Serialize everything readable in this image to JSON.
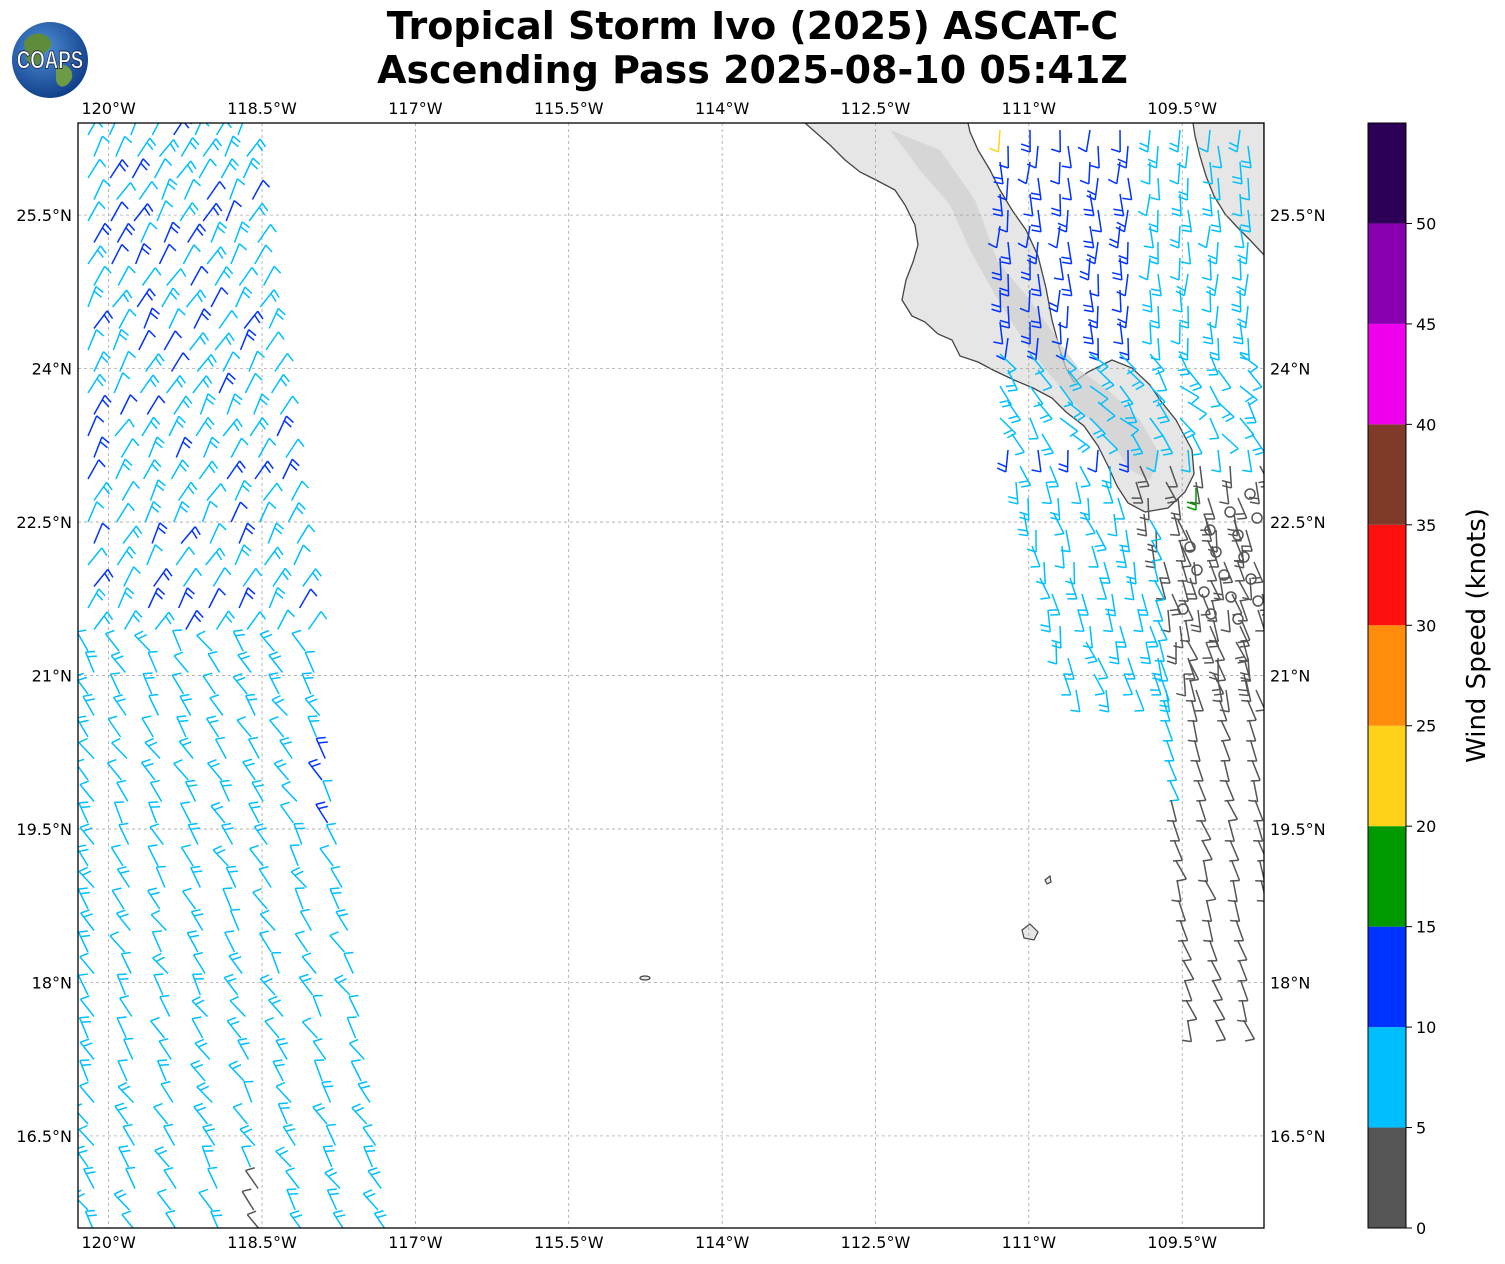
{
  "title": {
    "line1": "Tropical Storm Ivo (2025) ASCAT-C",
    "line2": "Ascending Pass 2025-08-10 05:41Z"
  },
  "logo": {
    "text": "COAPS",
    "icon": "globe-logo"
  },
  "map": {
    "lon_range": [
      -120.3,
      -108.7
    ],
    "lat_range": [
      15.6,
      26.4
    ],
    "gridlines": true,
    "x_ticks": [
      "120°W",
      "118.5°W",
      "117°W",
      "115.5°W",
      "114°W",
      "112.5°W",
      "111°W",
      "109.5°W"
    ],
    "y_ticks": [
      "25.5°N",
      "24°N",
      "22.5°N",
      "21°N",
      "19.5°N",
      "18°N",
      "16.5°N"
    ],
    "land_color": "#e6e6e6",
    "coast_color": "#444444"
  },
  "colorbar": {
    "label": "Wind Speed (knots)",
    "ticks": [
      "0",
      "5",
      "10",
      "15",
      "20",
      "25",
      "30",
      "35",
      "40",
      "45",
      "50"
    ],
    "bins": [
      {
        "min": 0,
        "max": 5,
        "color": "#555555"
      },
      {
        "min": 5,
        "max": 10,
        "color": "#00bfff"
      },
      {
        "min": 10,
        "max": 15,
        "color": "#0033ff"
      },
      {
        "min": 15,
        "max": 20,
        "color": "#009900"
      },
      {
        "min": 20,
        "max": 25,
        "color": "#ffd21a"
      },
      {
        "min": 25,
        "max": 30,
        "color": "#ff8c0a"
      },
      {
        "min": 30,
        "max": 35,
        "color": "#ff1010"
      },
      {
        "min": 35,
        "max": 40,
        "color": "#7f3a2a"
      },
      {
        "min": 40,
        "max": 45,
        "color": "#ee00ee"
      },
      {
        "min": 45,
        "max": 50,
        "color": "#8800b0"
      },
      {
        "min": 50,
        "max": 55,
        "color": "#2d0058"
      }
    ]
  }
}
